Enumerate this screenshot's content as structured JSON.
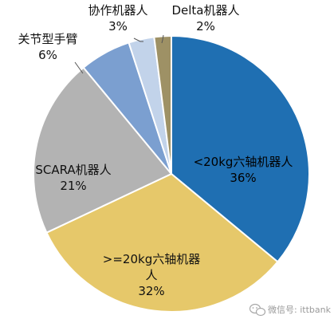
{
  "chart_data": {
    "type": "pie",
    "title": "",
    "start_angle_deg": 0,
    "direction": "clockwise",
    "slices": [
      {
        "label_lines": [
          "<20kg六轴机器人"
        ],
        "name": "<20kg六轴机器人",
        "value": 36,
        "value_label": "36%",
        "color": "#1f6fb2"
      },
      {
        "label_lines": [
          ">=20kg六轴机器",
          "人"
        ],
        "name": ">=20kg六轴机器人",
        "value": 32,
        "value_label": "32%",
        "color": "#e6c86a"
      },
      {
        "label_lines": [
          "SCARA机器人"
        ],
        "name": "SCARA机器人",
        "value": 21,
        "value_label": "21%",
        "color": "#b3b3b3"
      },
      {
        "label_lines": [
          "关节型手臂"
        ],
        "name": "关节型手臂",
        "value": 6,
        "value_label": "6%",
        "color": "#7b9fd0"
      },
      {
        "label_lines": [
          "协作机器人"
        ],
        "name": "协作机器人",
        "value": 3,
        "value_label": "3%",
        "color": "#c2d3ea"
      },
      {
        "label_lines": [
          "Delta机器人"
        ],
        "name": "Delta机器人",
        "value": 2,
        "value_label": "2%",
        "color": "#9e9165"
      }
    ]
  },
  "watermark": {
    "text": "微信号: ittbank",
    "icon": "wechat-icon"
  }
}
